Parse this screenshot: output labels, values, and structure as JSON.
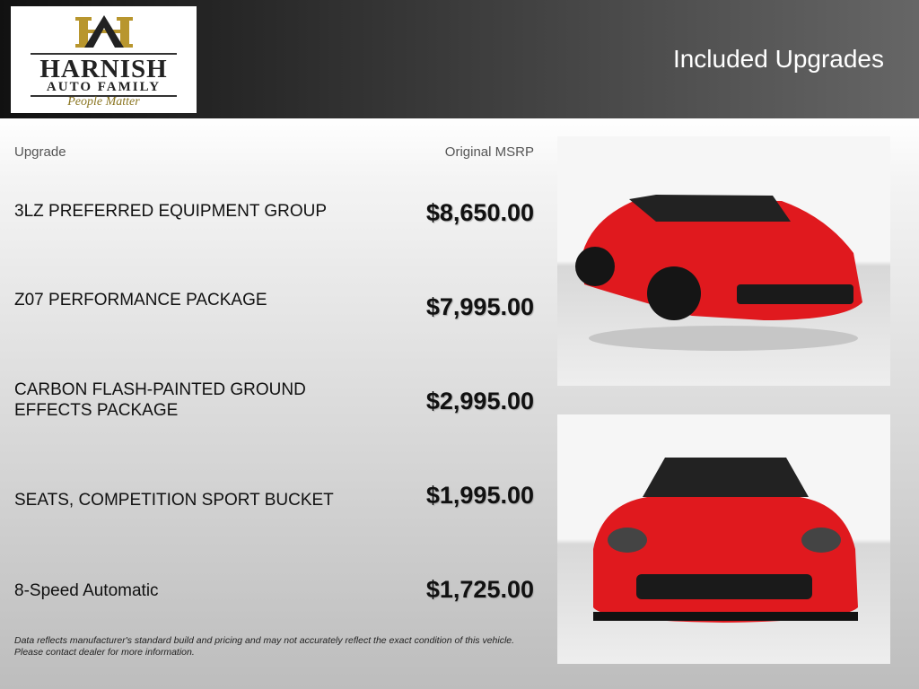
{
  "header": {
    "title": "Included Upgrades",
    "logo": {
      "line1": "HARNISH",
      "line2": "AUTO FAMILY",
      "tagline": "People Matter"
    }
  },
  "columns": {
    "upgrade": "Upgrade",
    "msrp": "Original MSRP"
  },
  "upgrades": [
    {
      "name": "3LZ PREFERRED EQUIPMENT GROUP",
      "price": "$8,650.00"
    },
    {
      "name": "Z07 PERFORMANCE PACKAGE",
      "price": "$7,995.00"
    },
    {
      "name": "CARBON FLASH-PAINTED GROUND EFFECTS PACKAGE",
      "price": "$2,995.00"
    },
    {
      "name": "SEATS, COMPETITION SPORT BUCKET",
      "price": "$1,995.00"
    },
    {
      "name": "8-Speed Automatic",
      "price": "$1,725.00"
    }
  ],
  "disclaimer": {
    "line1": "Data reflects manufacturer's standard build and pricing and may not accurately reflect the exact condition of this vehicle.",
    "line2": "Please contact dealer for more information."
  },
  "colors": {
    "car": "#e0191e",
    "logo_gold": "#b8962e"
  }
}
